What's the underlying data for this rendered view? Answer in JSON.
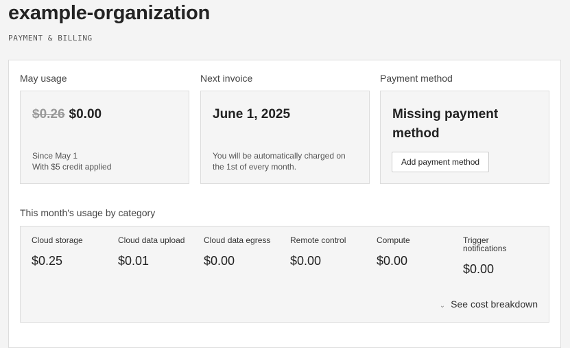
{
  "header": {
    "title": "example-organization",
    "subtitle": "PAYMENT & BILLING"
  },
  "usage": {
    "label": "May usage",
    "original": "$0.26",
    "amount": "$0.00",
    "line1": "Since May 1",
    "line2": "With $5 credit applied"
  },
  "invoice": {
    "label": "Next invoice",
    "date": "June 1, 2025",
    "note1": "You will be automatically charged on",
    "note2": "the 1st of every month."
  },
  "payment": {
    "label": "Payment method",
    "status": "Missing payment method",
    "button": "Add payment method"
  },
  "categories": {
    "label": "This month's usage by category",
    "items": [
      {
        "name": "Cloud storage",
        "value": "$0.25"
      },
      {
        "name": "Cloud data upload",
        "value": "$0.01"
      },
      {
        "name": "Cloud data egress",
        "value": "$0.00"
      },
      {
        "name": "Remote control",
        "value": "$0.00"
      },
      {
        "name": "Compute",
        "value": "$0.00"
      },
      {
        "name": "Trigger notifications",
        "value": "$0.00"
      }
    ],
    "breakdown": "See cost breakdown",
    "breakdown_icon": "chevron-down-icon"
  }
}
